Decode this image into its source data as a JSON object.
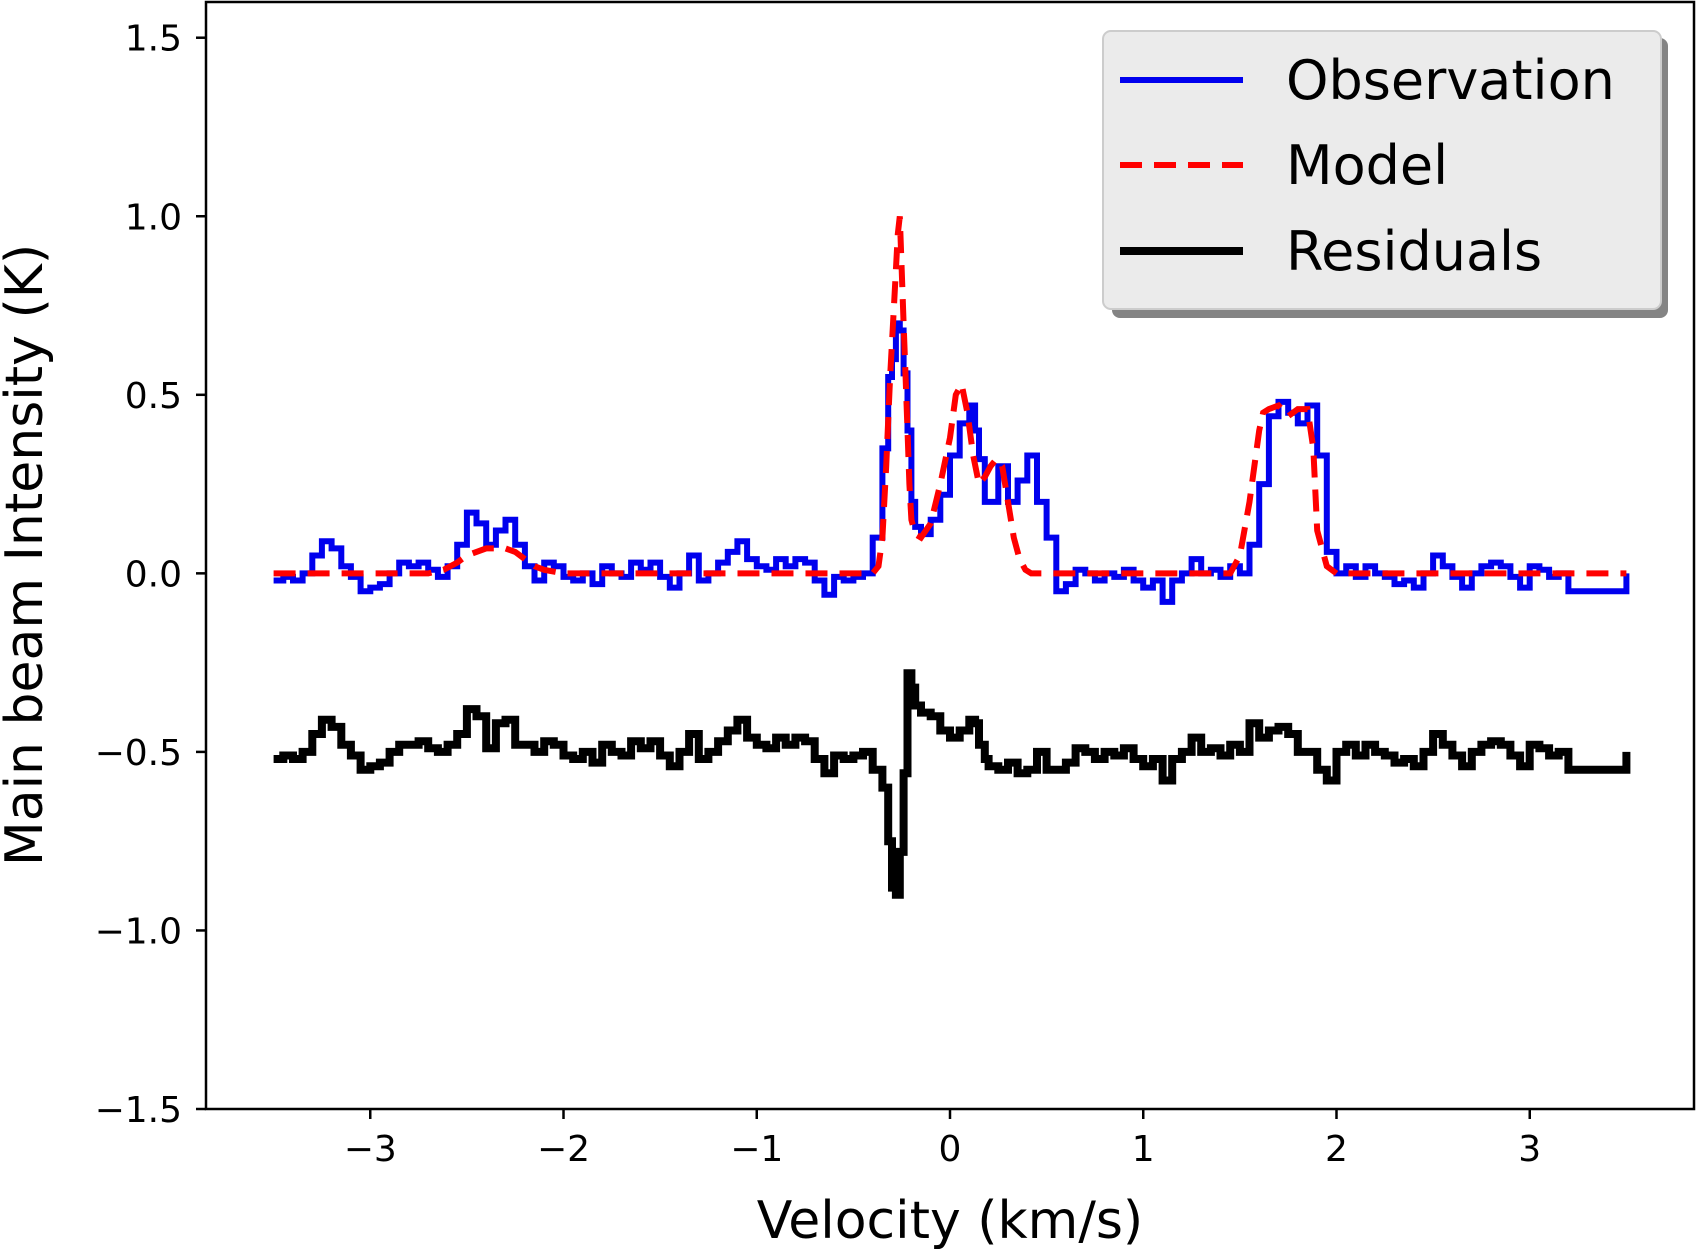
{
  "chart_data": {
    "type": "line",
    "title": "",
    "xlabel": "Velocity (km/s)",
    "ylabel": "Main beam Intensity (K)",
    "xlim": [
      -3.85,
      3.85
    ],
    "ylim": [
      -1.5,
      1.6
    ],
    "xticks": [
      -3,
      -2,
      -1,
      0,
      1,
      2,
      3
    ],
    "xtick_labels": [
      "−3",
      "−2",
      "−1",
      "0",
      "1",
      "2",
      "3"
    ],
    "yticks": [
      -1.5,
      -1.0,
      -0.5,
      0.0,
      0.5,
      1.0,
      1.5
    ],
    "ytick_labels": [
      "−1.5",
      "−1.0",
      "−0.5",
      "0.0",
      "0.5",
      "1.0",
      "1.5"
    ],
    "grid": false,
    "legend_position": "top-right",
    "series": [
      {
        "name": "Observation",
        "color": "#0000ee",
        "style": "solid-step",
        "x": [
          -3.5,
          -3.45,
          -3.4,
          -3.35,
          -3.3,
          -3.25,
          -3.2,
          -3.15,
          -3.1,
          -3.05,
          -3.0,
          -2.95,
          -2.9,
          -2.85,
          -2.8,
          -2.75,
          -2.7,
          -2.65,
          -2.6,
          -2.55,
          -2.5,
          -2.45,
          -2.4,
          -2.35,
          -2.3,
          -2.25,
          -2.2,
          -2.15,
          -2.1,
          -2.05,
          -2.0,
          -1.95,
          -1.9,
          -1.85,
          -1.8,
          -1.75,
          -1.7,
          -1.65,
          -1.6,
          -1.55,
          -1.5,
          -1.45,
          -1.4,
          -1.35,
          -1.3,
          -1.25,
          -1.2,
          -1.15,
          -1.1,
          -1.05,
          -1.0,
          -0.95,
          -0.9,
          -0.85,
          -0.8,
          -0.75,
          -0.7,
          -0.65,
          -0.6,
          -0.55,
          -0.5,
          -0.45,
          -0.4,
          -0.35,
          -0.32,
          -0.3,
          -0.28,
          -0.26,
          -0.24,
          -0.22,
          -0.2,
          -0.18,
          -0.15,
          -0.1,
          -0.05,
          0.0,
          0.05,
          0.1,
          0.13,
          0.15,
          0.18,
          0.2,
          0.25,
          0.3,
          0.35,
          0.4,
          0.45,
          0.5,
          0.55,
          0.6,
          0.65,
          0.7,
          0.75,
          0.8,
          0.85,
          0.9,
          0.95,
          1.0,
          1.05,
          1.1,
          1.15,
          1.2,
          1.25,
          1.3,
          1.35,
          1.4,
          1.45,
          1.5,
          1.55,
          1.6,
          1.65,
          1.7,
          1.75,
          1.8,
          1.85,
          1.9,
          1.95,
          2.0,
          2.05,
          2.1,
          2.15,
          2.2,
          2.25,
          2.3,
          2.35,
          2.4,
          2.45,
          2.5,
          2.55,
          2.6,
          2.65,
          2.7,
          2.75,
          2.8,
          2.85,
          2.9,
          2.95,
          3.0,
          3.05,
          3.1,
          3.15,
          3.2,
          3.5
        ],
        "y": [
          -0.02,
          -0.01,
          -0.02,
          0.0,
          0.05,
          0.09,
          0.07,
          0.02,
          -0.01,
          -0.05,
          -0.04,
          -0.03,
          0.0,
          0.03,
          0.02,
          0.03,
          0.01,
          -0.01,
          0.02,
          0.08,
          0.17,
          0.14,
          0.08,
          0.12,
          0.15,
          0.08,
          0.02,
          -0.02,
          0.03,
          0.02,
          -0.01,
          -0.02,
          0.0,
          -0.03,
          0.02,
          0.0,
          -0.01,
          0.03,
          0.01,
          0.03,
          -0.01,
          -0.04,
          0.0,
          0.05,
          -0.02,
          0.0,
          0.03,
          0.06,
          0.09,
          0.04,
          0.02,
          0.01,
          0.04,
          0.02,
          0.04,
          0.03,
          -0.02,
          -0.06,
          -0.01,
          -0.02,
          -0.01,
          0.0,
          0.1,
          0.35,
          0.55,
          0.6,
          0.7,
          0.68,
          0.56,
          0.4,
          0.2,
          0.13,
          0.11,
          0.15,
          0.22,
          0.33,
          0.42,
          0.47,
          0.4,
          0.32,
          0.2,
          0.2,
          0.3,
          0.2,
          0.26,
          0.33,
          0.2,
          0.1,
          -0.05,
          -0.03,
          0.01,
          0.0,
          -0.02,
          0.0,
          -0.01,
          0.01,
          -0.02,
          -0.04,
          -0.02,
          -0.08,
          -0.02,
          0.0,
          0.04,
          0.0,
          0.01,
          -0.01,
          0.02,
          0.0,
          0.08,
          0.25,
          0.44,
          0.48,
          0.45,
          0.42,
          0.47,
          0.33,
          0.06,
          0.0,
          0.02,
          -0.01,
          0.02,
          0.0,
          -0.01,
          -0.03,
          -0.02,
          -0.04,
          0.0,
          0.05,
          0.02,
          -0.01,
          -0.04,
          0.0,
          0.02,
          0.03,
          0.02,
          -0.01,
          -0.04,
          0.02,
          0.01,
          -0.01,
          0.0,
          -0.05,
          0.0
        ]
      },
      {
        "name": "Model",
        "color": "#ff0000",
        "style": "dashed",
        "x": [
          -3.5,
          -2.7,
          -2.62,
          -2.55,
          -2.5,
          -2.45,
          -2.4,
          -2.35,
          -2.3,
          -2.25,
          -2.2,
          -2.15,
          -2.1,
          -2.0,
          -0.4,
          -0.37,
          -0.35,
          -0.33,
          -0.31,
          -0.29,
          -0.28,
          -0.27,
          -0.26,
          -0.25,
          -0.24,
          -0.23,
          -0.22,
          -0.21,
          -0.2,
          -0.18,
          -0.15,
          -0.1,
          -0.05,
          0.0,
          0.03,
          0.06,
          0.09,
          0.12,
          0.15,
          0.18,
          0.21,
          0.24,
          0.27,
          0.3,
          0.33,
          0.36,
          0.39,
          0.42,
          0.45,
          0.5,
          1.45,
          1.5,
          1.55,
          1.6,
          1.62,
          1.65,
          1.7,
          1.75,
          1.8,
          1.85,
          1.88,
          1.9,
          1.95,
          2.0,
          3.5
        ],
        "y": [
          0.0,
          0.0,
          0.01,
          0.03,
          0.05,
          0.06,
          0.07,
          0.07,
          0.07,
          0.06,
          0.04,
          0.02,
          0.01,
          0.0,
          0.0,
          0.02,
          0.1,
          0.3,
          0.55,
          0.75,
          0.85,
          0.95,
          1.0,
          0.85,
          0.7,
          0.55,
          0.4,
          0.25,
          0.15,
          0.11,
          0.1,
          0.14,
          0.25,
          0.38,
          0.5,
          0.53,
          0.45,
          0.33,
          0.25,
          0.27,
          0.3,
          0.32,
          0.3,
          0.2,
          0.1,
          0.04,
          0.01,
          0.0,
          0.0,
          0.0,
          0.0,
          0.05,
          0.2,
          0.4,
          0.45,
          0.46,
          0.47,
          0.44,
          0.46,
          0.46,
          0.35,
          0.12,
          0.02,
          0.0,
          0.0
        ]
      },
      {
        "name": "Residuals",
        "color": "#000000",
        "style": "solid-step",
        "x": [
          -3.5,
          -3.45,
          -3.4,
          -3.35,
          -3.3,
          -3.25,
          -3.2,
          -3.15,
          -3.1,
          -3.05,
          -3.0,
          -2.95,
          -2.9,
          -2.85,
          -2.8,
          -2.75,
          -2.7,
          -2.65,
          -2.6,
          -2.55,
          -2.5,
          -2.45,
          -2.4,
          -2.35,
          -2.3,
          -2.25,
          -2.2,
          -2.15,
          -2.1,
          -2.05,
          -2.0,
          -1.95,
          -1.9,
          -1.85,
          -1.8,
          -1.75,
          -1.7,
          -1.65,
          -1.6,
          -1.55,
          -1.5,
          -1.45,
          -1.4,
          -1.35,
          -1.3,
          -1.25,
          -1.2,
          -1.15,
          -1.1,
          -1.05,
          -1.0,
          -0.95,
          -0.9,
          -0.85,
          -0.8,
          -0.75,
          -0.7,
          -0.65,
          -0.6,
          -0.55,
          -0.5,
          -0.45,
          -0.4,
          -0.35,
          -0.32,
          -0.3,
          -0.28,
          -0.26,
          -0.24,
          -0.22,
          -0.2,
          -0.18,
          -0.15,
          -0.1,
          -0.05,
          0.0,
          0.05,
          0.1,
          0.13,
          0.15,
          0.18,
          0.2,
          0.25,
          0.3,
          0.35,
          0.4,
          0.45,
          0.5,
          0.55,
          0.6,
          0.65,
          0.7,
          0.75,
          0.8,
          0.85,
          0.9,
          0.95,
          1.0,
          1.05,
          1.1,
          1.15,
          1.2,
          1.25,
          1.3,
          1.35,
          1.4,
          1.45,
          1.5,
          1.55,
          1.6,
          1.65,
          1.7,
          1.75,
          1.8,
          1.85,
          1.9,
          1.95,
          2.0,
          2.05,
          2.1,
          2.15,
          2.2,
          2.25,
          2.3,
          2.35,
          2.4,
          2.45,
          2.5,
          2.55,
          2.6,
          2.65,
          2.7,
          2.75,
          2.8,
          2.85,
          2.9,
          2.95,
          3.0,
          3.05,
          3.1,
          3.15,
          3.2,
          3.5
        ],
        "y": [
          -0.52,
          -0.51,
          -0.52,
          -0.5,
          -0.45,
          -0.41,
          -0.43,
          -0.48,
          -0.51,
          -0.55,
          -0.54,
          -0.53,
          -0.5,
          -0.48,
          -0.48,
          -0.47,
          -0.49,
          -0.5,
          -0.48,
          -0.45,
          -0.38,
          -0.4,
          -0.49,
          -0.42,
          -0.41,
          -0.48,
          -0.48,
          -0.5,
          -0.47,
          -0.48,
          -0.51,
          -0.52,
          -0.5,
          -0.53,
          -0.48,
          -0.5,
          -0.51,
          -0.47,
          -0.49,
          -0.47,
          -0.51,
          -0.54,
          -0.5,
          -0.45,
          -0.52,
          -0.5,
          -0.47,
          -0.44,
          -0.41,
          -0.46,
          -0.48,
          -0.49,
          -0.46,
          -0.48,
          -0.46,
          -0.47,
          -0.52,
          -0.56,
          -0.51,
          -0.52,
          -0.51,
          -0.5,
          -0.55,
          -0.6,
          -0.75,
          -0.88,
          -0.9,
          -0.78,
          -0.56,
          -0.28,
          -0.32,
          -0.37,
          -0.39,
          -0.4,
          -0.44,
          -0.46,
          -0.44,
          -0.41,
          -0.42,
          -0.48,
          -0.52,
          -0.54,
          -0.55,
          -0.53,
          -0.56,
          -0.55,
          -0.5,
          -0.55,
          -0.55,
          -0.53,
          -0.49,
          -0.5,
          -0.52,
          -0.5,
          -0.51,
          -0.49,
          -0.52,
          -0.54,
          -0.52,
          -0.58,
          -0.52,
          -0.5,
          -0.46,
          -0.5,
          -0.49,
          -0.51,
          -0.48,
          -0.5,
          -0.42,
          -0.46,
          -0.44,
          -0.43,
          -0.45,
          -0.5,
          -0.5,
          -0.55,
          -0.58,
          -0.5,
          -0.48,
          -0.51,
          -0.48,
          -0.5,
          -0.51,
          -0.53,
          -0.52,
          -0.54,
          -0.5,
          -0.45,
          -0.48,
          -0.51,
          -0.54,
          -0.5,
          -0.48,
          -0.47,
          -0.48,
          -0.51,
          -0.54,
          -0.48,
          -0.49,
          -0.51,
          -0.5,
          -0.55,
          -0.5
        ]
      }
    ]
  },
  "legend": {
    "items": [
      {
        "label": "Observation",
        "color": "#0000ee",
        "style": "solid"
      },
      {
        "label": "Model",
        "color": "#ff0000",
        "style": "dashed"
      },
      {
        "label": "Residuals",
        "color": "#000000",
        "style": "solid"
      }
    ]
  }
}
